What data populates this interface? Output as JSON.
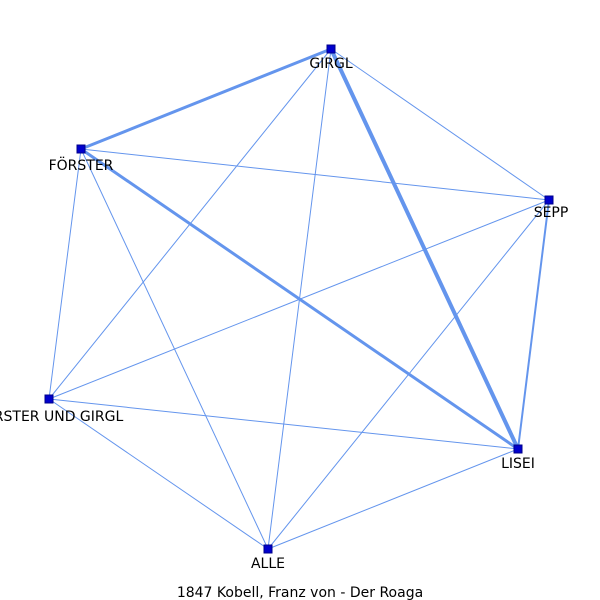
{
  "caption": "1847 Kobell, Franz von - Der Roaga",
  "colors": {
    "edge": "#6495ED",
    "node_fill": "#0000CD",
    "node_stroke": "#00008B",
    "label": "#000000"
  },
  "nodes": [
    {
      "id": "girgl",
      "label": "GIRGL"
    },
    {
      "id": "foerster",
      "label": "FÖRSTER"
    },
    {
      "id": "sepp",
      "label": "SEPP"
    },
    {
      "id": "foerster_und_girgl",
      "label": "FÖRSTER UND GIRGL"
    },
    {
      "id": "lisei",
      "label": "LISEI"
    },
    {
      "id": "alle",
      "label": "ALLE"
    }
  ],
  "edges": [
    {
      "source": "girgl",
      "target": "foerster",
      "weight": 3
    },
    {
      "source": "girgl",
      "target": "lisei",
      "weight": 4
    },
    {
      "source": "foerster",
      "target": "lisei",
      "weight": 3
    },
    {
      "source": "sepp",
      "target": "lisei",
      "weight": 2
    },
    {
      "source": "girgl",
      "target": "sepp",
      "weight": 1
    },
    {
      "source": "girgl",
      "target": "foerster_und_girgl",
      "weight": 1
    },
    {
      "source": "girgl",
      "target": "alle",
      "weight": 1
    },
    {
      "source": "foerster",
      "target": "sepp",
      "weight": 1
    },
    {
      "source": "foerster",
      "target": "foerster_und_girgl",
      "weight": 1
    },
    {
      "source": "foerster",
      "target": "alle",
      "weight": 1
    },
    {
      "source": "sepp",
      "target": "foerster_und_girgl",
      "weight": 1
    },
    {
      "source": "sepp",
      "target": "alle",
      "weight": 1
    },
    {
      "source": "foerster_und_girgl",
      "target": "lisei",
      "weight": 1
    },
    {
      "source": "foerster_und_girgl",
      "target": "alle",
      "weight": 1
    },
    {
      "source": "lisei",
      "target": "alle",
      "weight": 1
    }
  ]
}
